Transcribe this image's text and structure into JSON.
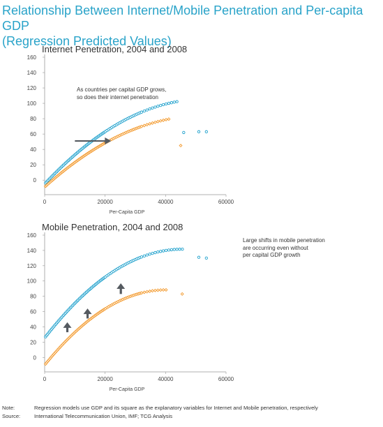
{
  "title_line1": "Relationship Between Internet/Mobile Penetration and Per-capita GDP",
  "title_line2": "(Regression Predicted Values)",
  "colors": {
    "title": "#29a3c9",
    "series_2008": "#1ea0cc",
    "series_2004": "#f39a2e",
    "arrow": "#555a60",
    "axis": "#999999"
  },
  "footnotes": {
    "note_key": "Note:",
    "note_text": "Regression models use GDP and its square as the explanatory variables for Internet and Mobile penetration, respectively",
    "source_key": "Source:",
    "source_text": "International Telecommunication Union, IMF; TCG Analysis"
  },
  "chart_data": [
    {
      "type": "scatter",
      "title": "Internet Penetration, 2004 and 2008",
      "xlabel": "Per-Capita GDP",
      "ylabel": "",
      "xlim": [
        0,
        60000
      ],
      "ylim": [
        0,
        160
      ],
      "x_ticks": [
        "0",
        "20000",
        "40000",
        "60000"
      ],
      "y_ticks": [
        "0",
        "20",
        "40",
        "60",
        "80",
        "100",
        "120",
        "140",
        "160"
      ],
      "annotation": [
        "As countries per capital GDP grows,",
        "so does their internet penetration"
      ],
      "arrows": [
        {
          "direction": "right",
          "from": [
            10000,
            51
          ],
          "to": [
            22000,
            51
          ]
        }
      ],
      "series": [
        {
          "color_key": "series_2008",
          "marker": "circle",
          "model": {
            "a": -5,
            "b": 4.2,
            "c": 0.04,
            "xmin": 300,
            "xmax": 44000
          },
          "extra_points": [
            [
              46000,
              62
            ],
            [
              51000,
              63
            ],
            [
              53500,
              63
            ]
          ]
        },
        {
          "color_key": "series_2004",
          "marker": "diamond",
          "model": {
            "a": -9,
            "b": 3.55,
            "c": 0.034,
            "xmin": 300,
            "xmax": 41500
          },
          "extra_points": [
            [
              45000,
              45
            ]
          ]
        }
      ]
    },
    {
      "type": "scatter",
      "title": "Mobile Penetration, 2004 and 2008",
      "xlabel": "Per-Capita GDP",
      "ylabel": "",
      "xlim": [
        0,
        60000
      ],
      "ylim": [
        0,
        160
      ],
      "x_ticks": [
        "0",
        "20000",
        "40000",
        "60000"
      ],
      "y_ticks": [
        "0",
        "20",
        "40",
        "60",
        "80",
        "100",
        "120",
        "140",
        "160"
      ],
      "annotation": [
        "Large shifts in mobile penetration",
        "are occurring even without",
        "per capital GDP growth"
      ],
      "arrows": [
        {
          "direction": "up",
          "from": [
            7500,
            33
          ],
          "to": [
            7500,
            46
          ]
        },
        {
          "direction": "up",
          "from": [
            14200,
            51
          ],
          "to": [
            14200,
            64
          ]
        },
        {
          "direction": "up",
          "from": [
            25200,
            83
          ],
          "to": [
            25200,
            97
          ]
        }
      ],
      "series": [
        {
          "color_key": "series_2008",
          "marker": "circle",
          "model": {
            "a": 25.5,
            "b": 5.1,
            "c": 0.056,
            "xmin": 300,
            "xmax": 46000
          },
          "extra_points": [
            [
              51000,
              131
            ],
            [
              53500,
              130
            ]
          ]
        },
        {
          "color_key": "series_2004",
          "marker": "diamond",
          "model": {
            "a": -10,
            "b": 4.9,
            "c": 0.061,
            "xmin": 300,
            "xmax": 40500
          },
          "extra_points": [
            [
              45500,
              83
            ]
          ]
        }
      ]
    }
  ]
}
